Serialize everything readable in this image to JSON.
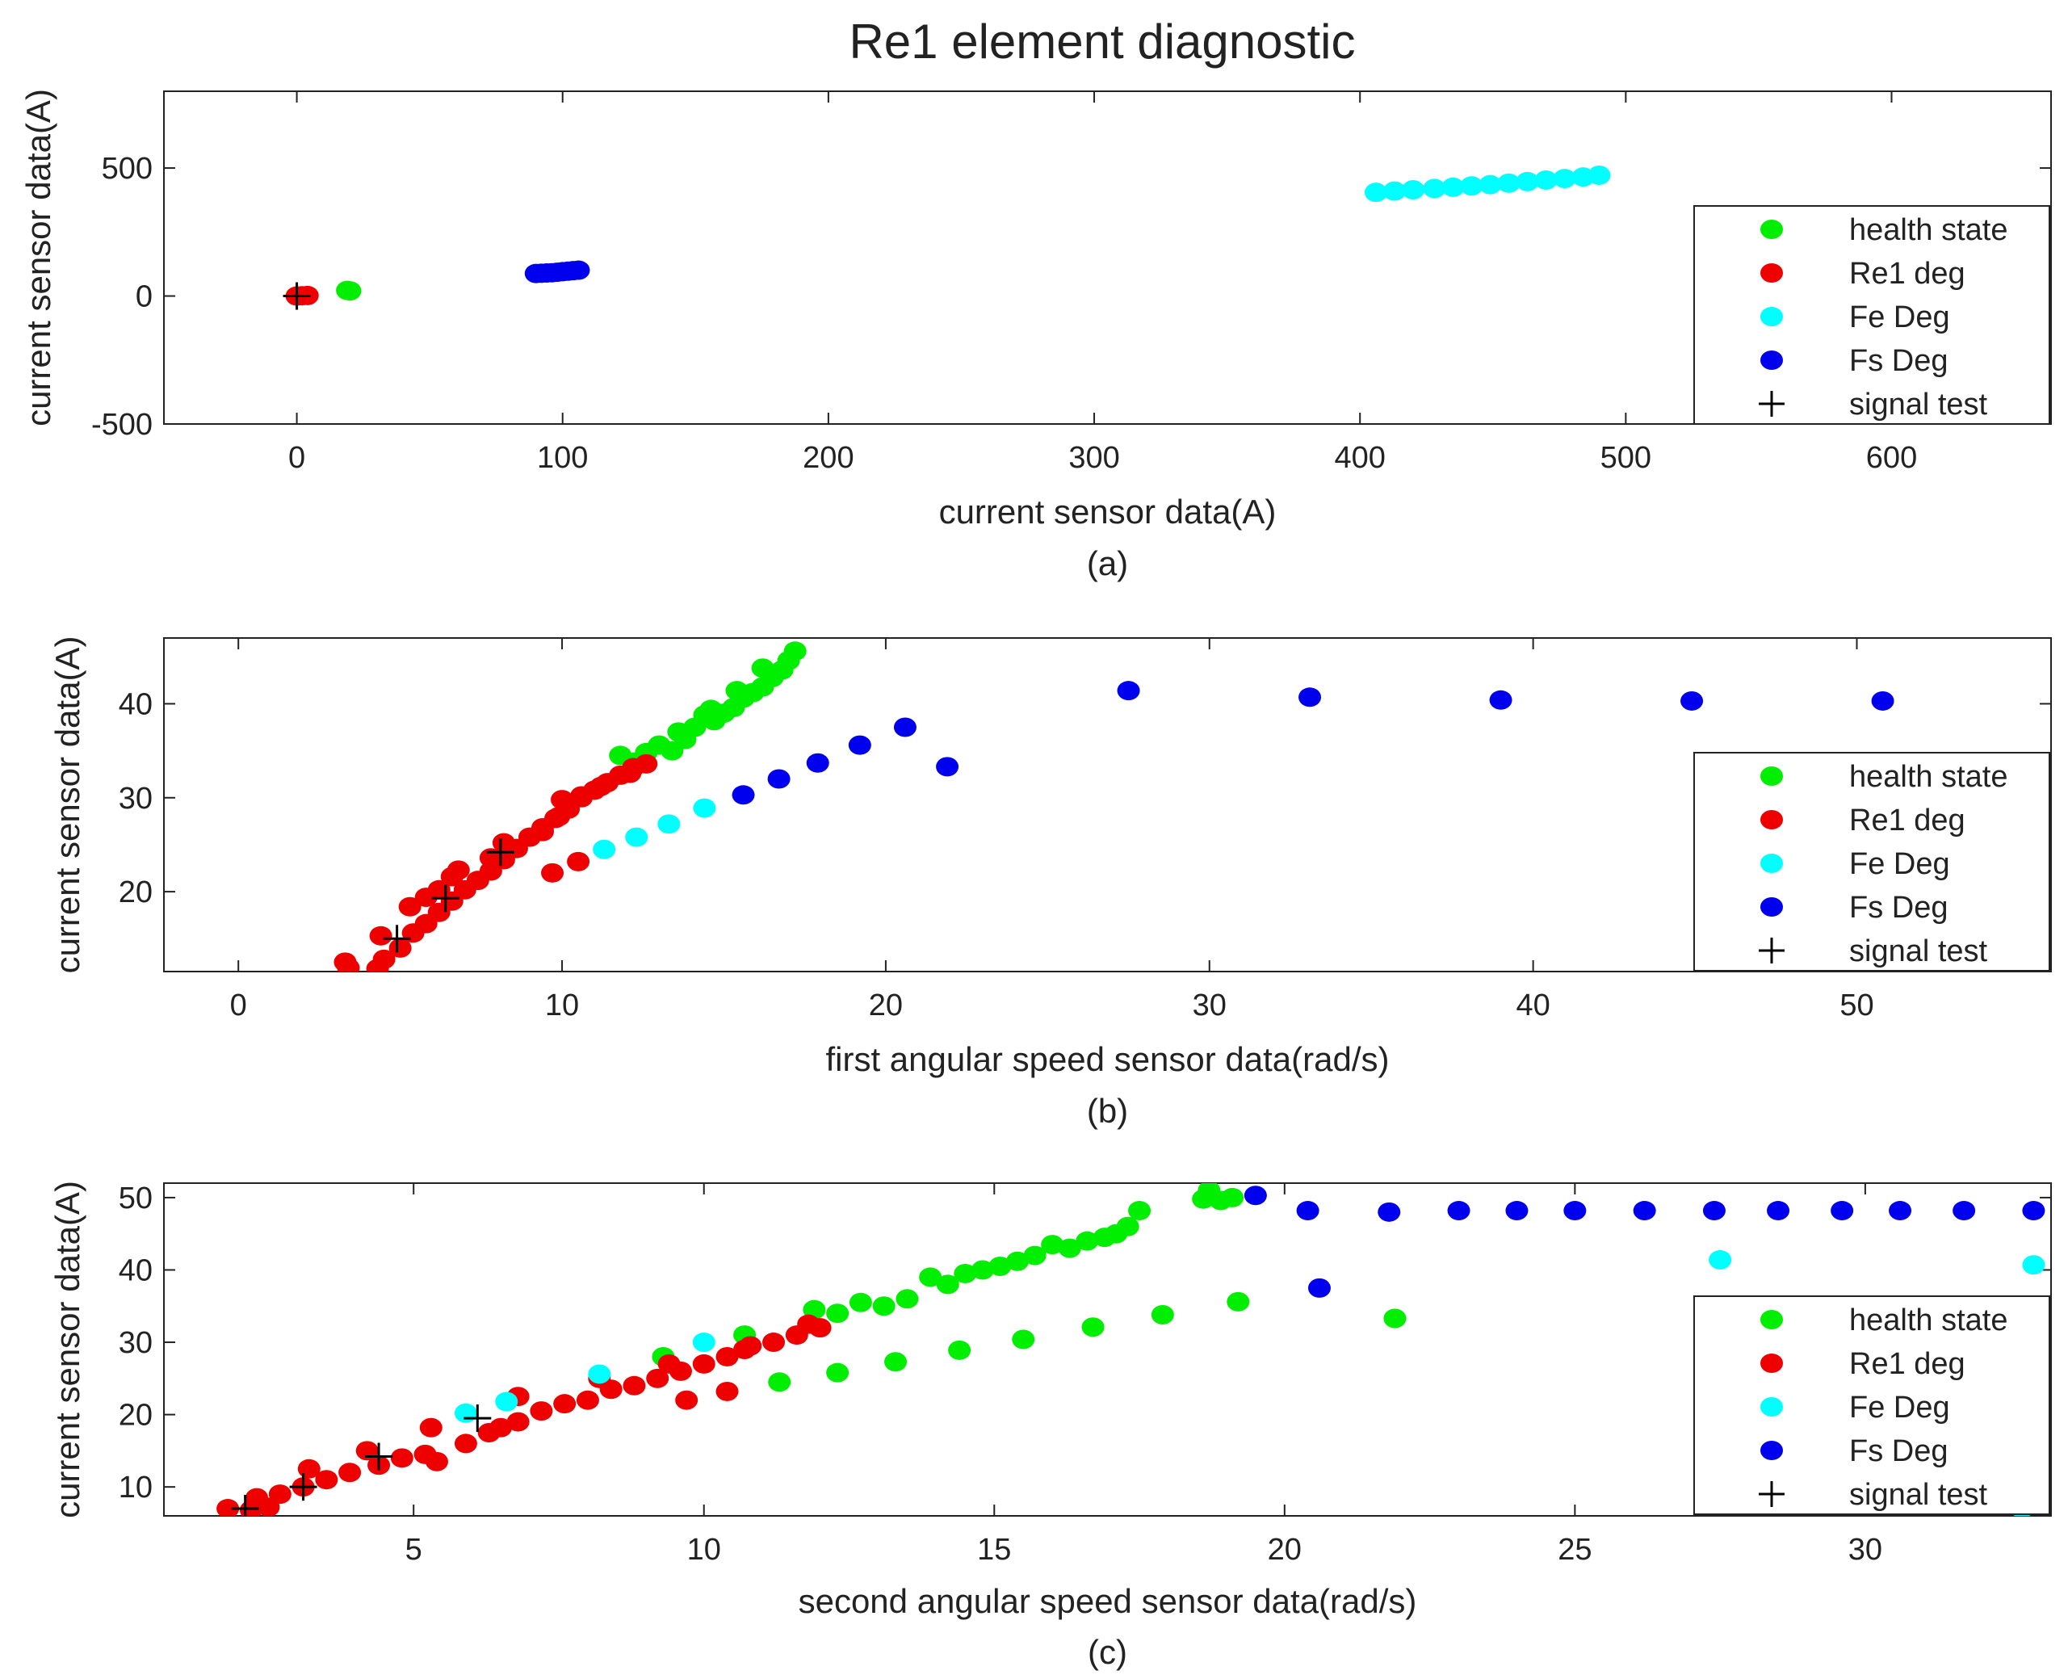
{
  "figure": {
    "title": "Re1 element diagnostic"
  },
  "chart_data": [
    {
      "type": "scatter",
      "caption": "(a)",
      "title": "",
      "xlabel": "current sensor data(A)",
      "ylabel": "current sensor data(A)",
      "xlim": [
        -50,
        660
      ],
      "ylim": [
        -500,
        800
      ],
      "xticks": [
        0,
        100,
        200,
        300,
        400,
        500,
        600
      ],
      "yticks": [
        -500,
        0,
        500
      ],
      "legend_position": "right",
      "legend": [
        "health state",
        "Re1 deg",
        "Fe Deg",
        "Fs Deg",
        "signal test"
      ],
      "series": [
        {
          "name": "health state",
          "color": "#00ee00",
          "marker": "dot",
          "points": [
            [
              19,
              22
            ],
            [
              20,
              20
            ]
          ]
        },
        {
          "name": "Re1 deg",
          "color": "#ee0000",
          "marker": "dot",
          "points": [
            [
              0,
              0
            ],
            [
              2,
              1
            ],
            [
              4,
              2
            ]
          ]
        },
        {
          "name": "Fe Deg",
          "color": "#00ffff",
          "marker": "dot",
          "points": [
            [
              406,
              405
            ],
            [
              413,
              410
            ],
            [
              420,
              415
            ],
            [
              428,
              420
            ],
            [
              435,
              425
            ],
            [
              442,
              430
            ],
            [
              449,
              435
            ],
            [
              456,
              441
            ],
            [
              463,
              447
            ],
            [
              470,
              453
            ],
            [
              477,
              459
            ],
            [
              484,
              465
            ],
            [
              490,
              472
            ]
          ]
        },
        {
          "name": "Fs Deg",
          "color": "#0000ee",
          "marker": "dot",
          "points": [
            [
              90,
              88
            ],
            [
              92,
              89
            ],
            [
              94,
              90
            ],
            [
              96,
              91
            ],
            [
              98,
              93
            ],
            [
              100,
              95
            ],
            [
              102,
              97
            ],
            [
              104,
              99
            ],
            [
              106,
              101
            ]
          ]
        },
        {
          "name": "signal test",
          "color": "#000000",
          "marker": "plus",
          "points": [
            [
              0,
              0
            ]
          ]
        }
      ]
    },
    {
      "type": "scatter",
      "caption": "(b)",
      "title": "",
      "xlabel": "first angular speed sensor data(rad/s)",
      "ylabel": "current sensor data(A)",
      "xlim": [
        -2.3,
        56
      ],
      "ylim": [
        11.5,
        47
      ],
      "xticks": [
        0,
        10,
        20,
        30,
        40,
        50
      ],
      "yticks": [
        20,
        30,
        40
      ],
      "legend_position": "right",
      "legend": [
        "health state",
        "Re1 deg",
        "Fe Deg",
        "Fs Deg",
        "signal test"
      ],
      "series": [
        {
          "name": "health state",
          "color": "#00ee00",
          "marker": "dot",
          "points": [
            [
              11.8,
              34.5
            ],
            [
              12.2,
              33.8
            ],
            [
              12.6,
              34.8
            ],
            [
              13.0,
              35.6
            ],
            [
              13.4,
              35.0
            ],
            [
              13.8,
              36.2
            ],
            [
              14.1,
              37.5
            ],
            [
              14.4,
              38.8
            ],
            [
              14.7,
              38.2
            ],
            [
              15.0,
              39.0
            ],
            [
              15.3,
              39.6
            ],
            [
              15.6,
              40.6
            ],
            [
              15.9,
              41.2
            ],
            [
              16.2,
              41.8
            ],
            [
              16.5,
              42.8
            ],
            [
              16.8,
              43.6
            ],
            [
              17.0,
              44.6
            ],
            [
              17.2,
              45.6
            ],
            [
              16.2,
              43.8
            ],
            [
              15.4,
              41.4
            ],
            [
              14.6,
              39.4
            ],
            [
              13.6,
              37.0
            ]
          ]
        },
        {
          "name": "Re1 deg",
          "color": "#ee0000",
          "marker": "dot",
          "points": [
            [
              3.3,
              12.5
            ],
            [
              3.4,
              11.9
            ],
            [
              4.3,
              11.8
            ],
            [
              4.5,
              12.8
            ],
            [
              4.4,
              15.3
            ],
            [
              5.0,
              14.0
            ],
            [
              5.4,
              15.6
            ],
            [
              5.8,
              16.6
            ],
            [
              6.2,
              17.8
            ],
            [
              6.6,
              19.0
            ],
            [
              7.0,
              20.2
            ],
            [
              7.4,
              21.2
            ],
            [
              7.8,
              22.2
            ],
            [
              8.2,
              23.4
            ],
            [
              8.6,
              24.6
            ],
            [
              9.0,
              25.8
            ],
            [
              9.4,
              26.8
            ],
            [
              9.8,
              27.8
            ],
            [
              10.2,
              28.8
            ],
            [
              10.6,
              30.0
            ],
            [
              11.0,
              30.8
            ],
            [
              11.4,
              31.6
            ],
            [
              11.8,
              32.4
            ],
            [
              12.2,
              33.2
            ],
            [
              12.6,
              33.6
            ],
            [
              5.3,
              18.4
            ],
            [
              5.8,
              19.4
            ],
            [
              6.2,
              20.2
            ],
            [
              6.6,
              21.6
            ],
            [
              6.8,
              22.3
            ],
            [
              7.8,
              23.6
            ],
            [
              8.2,
              25.2
            ],
            [
              9.4,
              26.4
            ],
            [
              9.9,
              28.0
            ],
            [
              10.0,
              29.8
            ],
            [
              10.6,
              30.2
            ],
            [
              11.2,
              31.2
            ],
            [
              12.1,
              32.6
            ],
            [
              9.7,
              22.0
            ],
            [
              10.5,
              23.2
            ]
          ]
        },
        {
          "name": "Fe Deg",
          "color": "#00ffff",
          "marker": "dot",
          "points": [
            [
              11.3,
              24.5
            ],
            [
              12.3,
              25.8
            ],
            [
              13.3,
              27.2
            ],
            [
              14.4,
              28.9
            ]
          ]
        },
        {
          "name": "Fs Deg",
          "color": "#0000ee",
          "marker": "dot",
          "points": [
            [
              15.6,
              30.3
            ],
            [
              16.7,
              32.0
            ],
            [
              17.9,
              33.7
            ],
            [
              19.2,
              35.6
            ],
            [
              20.6,
              37.5
            ],
            [
              21.9,
              33.3
            ],
            [
              27.5,
              41.4
            ],
            [
              33.1,
              40.7
            ],
            [
              39.0,
              40.4
            ],
            [
              44.9,
              40.3
            ],
            [
              50.8,
              40.3
            ]
          ]
        },
        {
          "name": "signal test",
          "color": "#000000",
          "marker": "plus",
          "points": [
            [
              4.9,
              15.0
            ],
            [
              6.4,
              19.3
            ],
            [
              8.1,
              24.2
            ]
          ]
        }
      ]
    },
    {
      "type": "scatter",
      "caption": "(c)",
      "title": "",
      "xlabel": "second angular speed sensor data(rad/s)",
      "ylabel": "current sensor data(A)",
      "xlim": [
        0.7,
        33.2
      ],
      "ylim": [
        6,
        52
      ],
      "xticks": [
        5,
        10,
        15,
        20,
        25,
        30
      ],
      "yticks": [
        10,
        20,
        30,
        40,
        50
      ],
      "legend_position": "right",
      "legend": [
        "health state",
        "Re1 deg",
        "Fe Deg",
        "Fs Deg",
        "signal test"
      ],
      "series": [
        {
          "name": "health state",
          "color": "#00ee00",
          "marker": "dot",
          "points": [
            [
              9.3,
              28.0
            ],
            [
              10.7,
              31.0
            ],
            [
              11.9,
              34.5
            ],
            [
              12.3,
              34.0
            ],
            [
              12.7,
              35.5
            ],
            [
              13.1,
              35.0
            ],
            [
              13.5,
              36.0
            ],
            [
              13.9,
              39.0
            ],
            [
              14.2,
              38.0
            ],
            [
              14.5,
              39.5
            ],
            [
              14.8,
              40.0
            ],
            [
              15.1,
              40.5
            ],
            [
              15.4,
              41.2
            ],
            [
              15.7,
              42.0
            ],
            [
              16.0,
              43.5
            ],
            [
              16.3,
              43.0
            ],
            [
              16.6,
              44.0
            ],
            [
              16.9,
              44.5
            ],
            [
              17.1,
              45.0
            ],
            [
              17.3,
              46.0
            ],
            [
              17.5,
              48.2
            ],
            [
              18.6,
              49.8
            ],
            [
              18.7,
              51.0
            ],
            [
              18.9,
              49.6
            ],
            [
              19.1,
              50.0
            ],
            [
              11.3,
              24.5
            ],
            [
              12.3,
              25.8
            ],
            [
              13.3,
              27.3
            ],
            [
              14.4,
              28.9
            ],
            [
              15.5,
              30.4
            ],
            [
              16.7,
              32.1
            ],
            [
              17.9,
              33.8
            ],
            [
              19.2,
              35.6
            ],
            [
              21.9,
              33.3
            ]
          ]
        },
        {
          "name": "Re1 deg",
          "color": "#ee0000",
          "marker": "dot",
          "points": [
            [
              1.8,
              7.0
            ],
            [
              2.2,
              6.8
            ],
            [
              2.5,
              7.2
            ],
            [
              2.3,
              8.5
            ],
            [
              2.7,
              9.0
            ],
            [
              3.1,
              10.0
            ],
            [
              3.2,
              12.5
            ],
            [
              3.5,
              11.0
            ],
            [
              3.9,
              12.0
            ],
            [
              4.2,
              15.0
            ],
            [
              4.4,
              13.0
            ],
            [
              4.8,
              14.0
            ],
            [
              5.2,
              14.5
            ],
            [
              5.4,
              13.5
            ],
            [
              5.9,
              16.0
            ],
            [
              6.3,
              17.5
            ],
            [
              6.5,
              18.2
            ],
            [
              6.8,
              19.0
            ],
            [
              7.2,
              20.5
            ],
            [
              7.6,
              21.5
            ],
            [
              8.0,
              22.0
            ],
            [
              8.4,
              23.5
            ],
            [
              8.8,
              24.0
            ],
            [
              9.2,
              25.0
            ],
            [
              9.6,
              26.0
            ],
            [
              10.0,
              27.0
            ],
            [
              10.4,
              28.0
            ],
            [
              10.8,
              29.5
            ],
            [
              11.2,
              30.0
            ],
            [
              11.6,
              31.0
            ],
            [
              12.0,
              32.0
            ],
            [
              5.3,
              18.2
            ],
            [
              6.8,
              22.5
            ],
            [
              8.2,
              25.0
            ],
            [
              9.4,
              27.0
            ],
            [
              10.7,
              29.0
            ],
            [
              9.7,
              22.0
            ],
            [
              10.4,
              23.2
            ],
            [
              11.8,
              32.5
            ]
          ]
        },
        {
          "name": "Fe Deg",
          "color": "#00ffff",
          "marker": "dot",
          "points": [
            [
              5.9,
              20.2
            ],
            [
              6.6,
              21.8
            ],
            [
              8.2,
              25.6
            ],
            [
              10.0,
              30.0
            ],
            [
              27.5,
              41.4
            ],
            [
              32.7,
              7.0
            ],
            [
              32.9,
              40.7
            ]
          ]
        },
        {
          "name": "Fs Deg",
          "color": "#0000ee",
          "marker": "dot",
          "points": [
            [
              19.5,
              50.3
            ],
            [
              20.6,
              37.5
            ],
            [
              20.4,
              48.2
            ],
            [
              21.8,
              48.0
            ],
            [
              23.0,
              48.2
            ],
            [
              24.0,
              48.2
            ],
            [
              25.0,
              48.2
            ],
            [
              26.2,
              48.2
            ],
            [
              27.4,
              48.2
            ],
            [
              28.5,
              48.2
            ],
            [
              29.6,
              48.2
            ],
            [
              30.6,
              48.2
            ],
            [
              31.7,
              48.2
            ],
            [
              32.9,
              48.2
            ]
          ]
        },
        {
          "name": "signal test",
          "color": "#000000",
          "marker": "plus",
          "points": [
            [
              2.1,
              7.0
            ],
            [
              3.1,
              10.0
            ],
            [
              4.4,
              14.2
            ],
            [
              6.1,
              19.5
            ]
          ]
        }
      ]
    }
  ]
}
